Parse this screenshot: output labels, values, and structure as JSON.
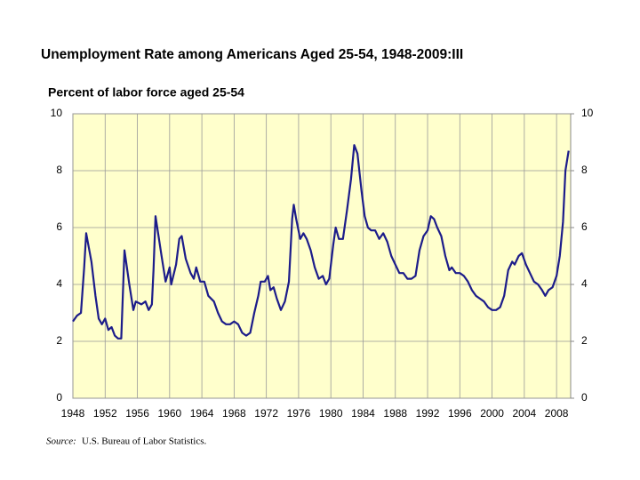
{
  "chart_data": {
    "type": "line",
    "title": "Unemployment Rate among Americans Aged 25-54, 1948-2009:III",
    "subtitle": "Percent of labor force aged 25-54",
    "source_label": "Source:",
    "source": "U.S. Bureau of Labor Statistics.",
    "x": [
      1948.0,
      1948.5,
      1949.0,
      1949.4,
      1949.65,
      1950.3,
      1950.8,
      1951.2,
      1951.6,
      1952.0,
      1952.4,
      1952.8,
      1953.2,
      1953.6,
      1954.0,
      1954.4,
      1955.0,
      1955.5,
      1955.8,
      1956.5,
      1957.0,
      1957.4,
      1957.8,
      1958.0,
      1958.25,
      1959.0,
      1959.5,
      1960.0,
      1960.2,
      1960.8,
      1961.2,
      1961.5,
      1962.0,
      1962.6,
      1963.0,
      1963.3,
      1963.8,
      1964.3,
      1964.8,
      1965.5,
      1966.0,
      1966.5,
      1967.0,
      1967.5,
      1968.0,
      1968.5,
      1969.0,
      1969.5,
      1970.0,
      1970.5,
      1971.0,
      1971.3,
      1971.8,
      1972.2,
      1972.5,
      1972.9,
      1973.3,
      1973.8,
      1974.3,
      1974.8,
      1975.2,
      1975.4,
      1975.7,
      1976.2,
      1976.6,
      1977.0,
      1977.5,
      1978.0,
      1978.5,
      1979.0,
      1979.4,
      1979.8,
      1980.3,
      1980.6,
      1981.0,
      1981.5,
      1982.0,
      1982.5,
      1982.9,
      1983.3,
      1983.8,
      1984.2,
      1984.6,
      1985.0,
      1985.5,
      1986.0,
      1986.5,
      1987.0,
      1987.5,
      1988.0,
      1988.5,
      1989.0,
      1989.5,
      1990.0,
      1990.5,
      1991.0,
      1991.5,
      1992.0,
      1992.4,
      1992.8,
      1993.2,
      1993.7,
      1994.2,
      1994.7,
      1995.0,
      1995.5,
      1996.0,
      1996.5,
      1997.0,
      1997.5,
      1998.0,
      1998.5,
      1999.0,
      1999.5,
      2000.0,
      2000.5,
      2001.0,
      2001.5,
      2002.0,
      2002.5,
      2002.8,
      2003.3,
      2003.7,
      2004.2,
      2004.7,
      2005.2,
      2005.7,
      2006.2,
      2006.6,
      2007.0,
      2007.5,
      2008.0,
      2008.4,
      2008.8,
      2009.1,
      2009.5
    ],
    "series": [
      {
        "name": "Unemployment rate",
        "color": "#1c1c8a",
        "values": [
          2.7,
          2.9,
          3.0,
          4.6,
          5.8,
          4.8,
          3.6,
          2.8,
          2.6,
          2.8,
          2.4,
          2.5,
          2.2,
          2.1,
          2.1,
          5.2,
          4.0,
          3.1,
          3.4,
          3.3,
          3.4,
          3.1,
          3.3,
          4.5,
          6.4,
          5.0,
          4.1,
          4.6,
          4.0,
          4.7,
          5.6,
          5.7,
          4.9,
          4.4,
          4.2,
          4.6,
          4.1,
          4.1,
          3.6,
          3.4,
          3.0,
          2.7,
          2.6,
          2.6,
          2.7,
          2.6,
          2.3,
          2.2,
          2.3,
          3.0,
          3.6,
          4.1,
          4.1,
          4.3,
          3.8,
          3.9,
          3.5,
          3.1,
          3.4,
          4.1,
          6.3,
          6.8,
          6.3,
          5.6,
          5.8,
          5.6,
          5.2,
          4.6,
          4.2,
          4.3,
          4.0,
          4.2,
          5.4,
          6.0,
          5.6,
          5.6,
          6.6,
          7.7,
          8.9,
          8.6,
          7.3,
          6.4,
          6.0,
          5.9,
          5.9,
          5.6,
          5.8,
          5.5,
          5.0,
          4.7,
          4.4,
          4.4,
          4.2,
          4.2,
          4.3,
          5.2,
          5.7,
          5.9,
          6.4,
          6.3,
          6.0,
          5.7,
          5.0,
          4.5,
          4.6,
          4.4,
          4.4,
          4.3,
          4.1,
          3.8,
          3.6,
          3.5,
          3.4,
          3.2,
          3.1,
          3.1,
          3.2,
          3.6,
          4.5,
          4.8,
          4.7,
          5.0,
          5.1,
          4.7,
          4.4,
          4.1,
          4.0,
          3.8,
          3.6,
          3.8,
          3.9,
          4.3,
          5.0,
          6.2,
          8.0,
          8.7
        ]
      }
    ],
    "xlim": [
      1948,
      2009.75
    ],
    "xticks": [
      1948,
      1952,
      1956,
      1960,
      1964,
      1968,
      1972,
      1976,
      1980,
      1984,
      1988,
      1992,
      1996,
      2000,
      2004,
      2008
    ],
    "ylim": [
      0,
      10
    ],
    "yticks": [
      0,
      2,
      4,
      6,
      8,
      10
    ],
    "y2lim": [
      0,
      10
    ],
    "y2ticks": [
      0,
      2,
      4,
      6,
      8,
      10
    ],
    "grid": true,
    "background": "#ffffcc"
  }
}
